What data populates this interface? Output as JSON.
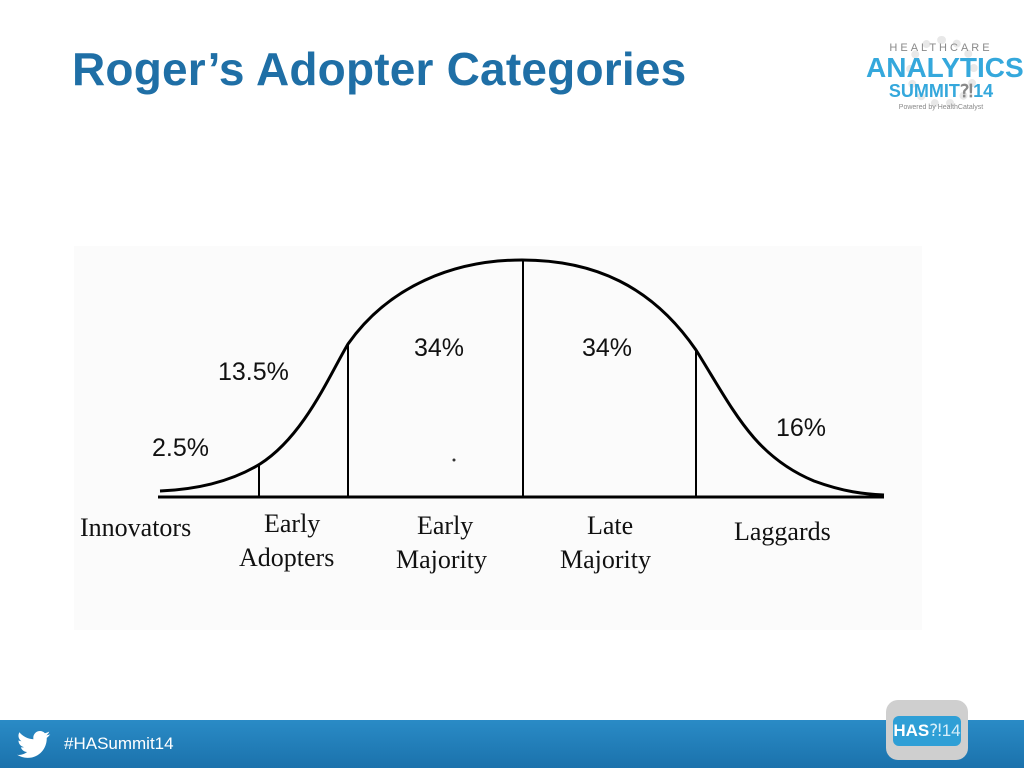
{
  "slide": {
    "title": "Roger’s Adopter Categories"
  },
  "logo": {
    "line1": "HEALTHCARE",
    "line2": "ANALYTICS",
    "line3_word": "SUMMIT",
    "line3_mark": "⁈",
    "line3_num": "14",
    "line4": "Powered by HealthCatalyst"
  },
  "footer": {
    "hashtag": "#HASummit14",
    "badge_text": "HAS",
    "badge_mark": "⁈",
    "badge_num": "14",
    "bar_color": "#1b72ac"
  },
  "diagram": {
    "percentages": {
      "innovators": "2.5%",
      "early_adopters": "13.5%",
      "early_majority": "34%",
      "late_majority": "34%",
      "laggards": "16%"
    },
    "categories": {
      "innovators": [
        "Innovators"
      ],
      "early_adopters": [
        "Early",
        "Adopters"
      ],
      "early_majority": [
        "Early",
        "Majority"
      ],
      "late_majority": [
        "Late",
        "Majority"
      ],
      "laggards": [
        "Laggards"
      ]
    }
  }
}
